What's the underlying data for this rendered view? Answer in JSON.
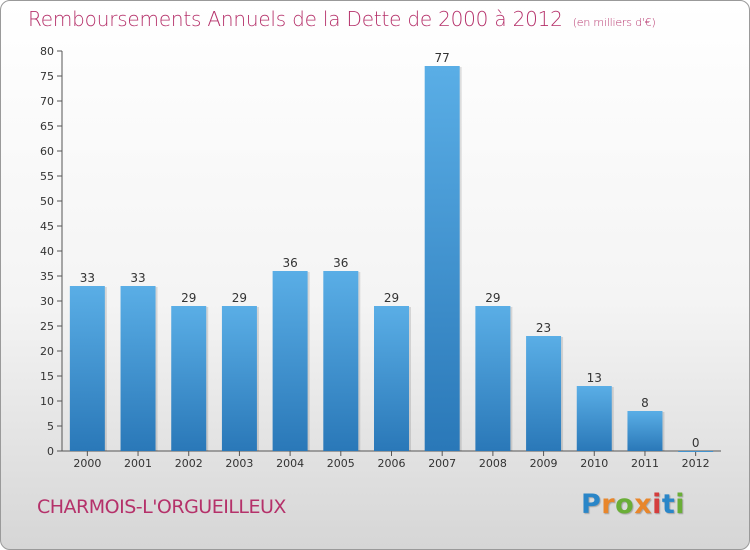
{
  "title": "Remboursements Annuels de la Dette de 2000 à 2012",
  "subtitle": "(en milliers d'€)",
  "commune": "CHARMOIS-L'ORGUEILLEUX",
  "logo": {
    "letters": [
      "P",
      "r",
      "o",
      "x",
      "i",
      "t",
      "i"
    ],
    "colors": [
      "#2a86c8",
      "#e8862b",
      "#6aae37",
      "#e8862b",
      "#d43d3d",
      "#2a86c8",
      "#6aae37"
    ]
  },
  "colors": {
    "bar_top": "#5aaee6",
    "bar_bottom": "#2a78b8",
    "title": "#b5316a"
  },
  "chart_data": {
    "type": "bar",
    "categories": [
      "2000",
      "2001",
      "2002",
      "2003",
      "2004",
      "2005",
      "2006",
      "2007",
      "2008",
      "2009",
      "2010",
      "2011",
      "2012"
    ],
    "values": [
      33,
      33,
      29,
      29,
      36,
      36,
      29,
      77,
      29,
      23,
      13,
      8,
      0
    ],
    "ylim": [
      0,
      80
    ],
    "yticks": [
      0,
      5,
      10,
      15,
      20,
      25,
      30,
      35,
      40,
      45,
      50,
      55,
      60,
      65,
      70,
      75,
      80
    ],
    "grid": false
  }
}
